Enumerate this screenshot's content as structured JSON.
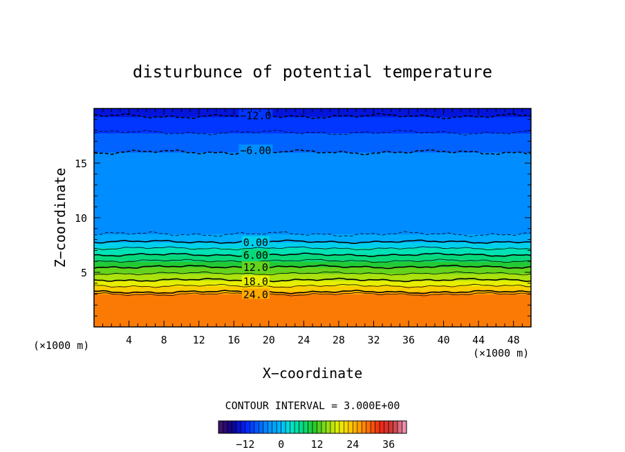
{
  "chart_data": {
    "type": "heatmap",
    "title": "disturbunce of potential temperature",
    "xlabel": "X−coordinate",
    "ylabel": "Z−coordinate",
    "x_unit_left": "(×1000 m)",
    "x_unit_right": "(×1000 m)",
    "xlim": [
      0,
      50
    ],
    "ylim": [
      0,
      20
    ],
    "x_ticks": [
      4,
      8,
      12,
      16,
      20,
      24,
      28,
      32,
      36,
      40,
      44,
      48
    ],
    "y_ticks": [
      5,
      10,
      15
    ],
    "grid": false,
    "contour_interval_text": "CONTOUR INTERVAL = 3.000E+00",
    "value_range": [
      -21,
      42
    ],
    "contour_interval": 3,
    "field_profile": [
      {
        "z": 0.0,
        "value": 28.5
      },
      {
        "z": 3.0,
        "value": 27.0
      },
      {
        "z": 3.2,
        "value": 24.0
      },
      {
        "z": 4.3,
        "value": 18.0
      },
      {
        "z": 5.5,
        "value": 12.0
      },
      {
        "z": 6.6,
        "value": 6.0
      },
      {
        "z": 7.8,
        "value": 0.0
      },
      {
        "z": 8.5,
        "value": -3.0
      },
      {
        "z": 11.0,
        "value": -3.5
      },
      {
        "z": 16.0,
        "value": -6.0
      },
      {
        "z": 17.8,
        "value": -9.0
      },
      {
        "z": 19.3,
        "value": -12.0
      },
      {
        "z": 20.0,
        "value": -15.0
      }
    ],
    "contour_labels": [
      {
        "value": 24.0,
        "text": "24.0",
        "z": 3.0,
        "x": 18.5
      },
      {
        "value": 18.0,
        "text": "18.0",
        "z": 4.2,
        "x": 18.5
      },
      {
        "value": 12.0,
        "text": "12.0",
        "z": 5.5,
        "x": 18.5
      },
      {
        "value": 6.0,
        "text": "6.00",
        "z": 6.6,
        "x": 18.5
      },
      {
        "value": 0.0,
        "text": "0.00",
        "z": 7.8,
        "x": 18.5
      },
      {
        "value": -6.0,
        "text": "−6.00",
        "z": 16.2,
        "x": 18.5
      },
      {
        "value": -12.0,
        "text": "−12.0",
        "z": 19.4,
        "x": 18.5
      }
    ],
    "colorbar": {
      "range": [
        -21,
        42
      ],
      "ticks": [
        {
          "value": -12,
          "label": "−12"
        },
        {
          "value": 0,
          "label": "0"
        },
        {
          "value": 12,
          "label": "12"
        },
        {
          "value": 24,
          "label": "24"
        },
        {
          "value": 36,
          "label": "36"
        }
      ]
    }
  }
}
